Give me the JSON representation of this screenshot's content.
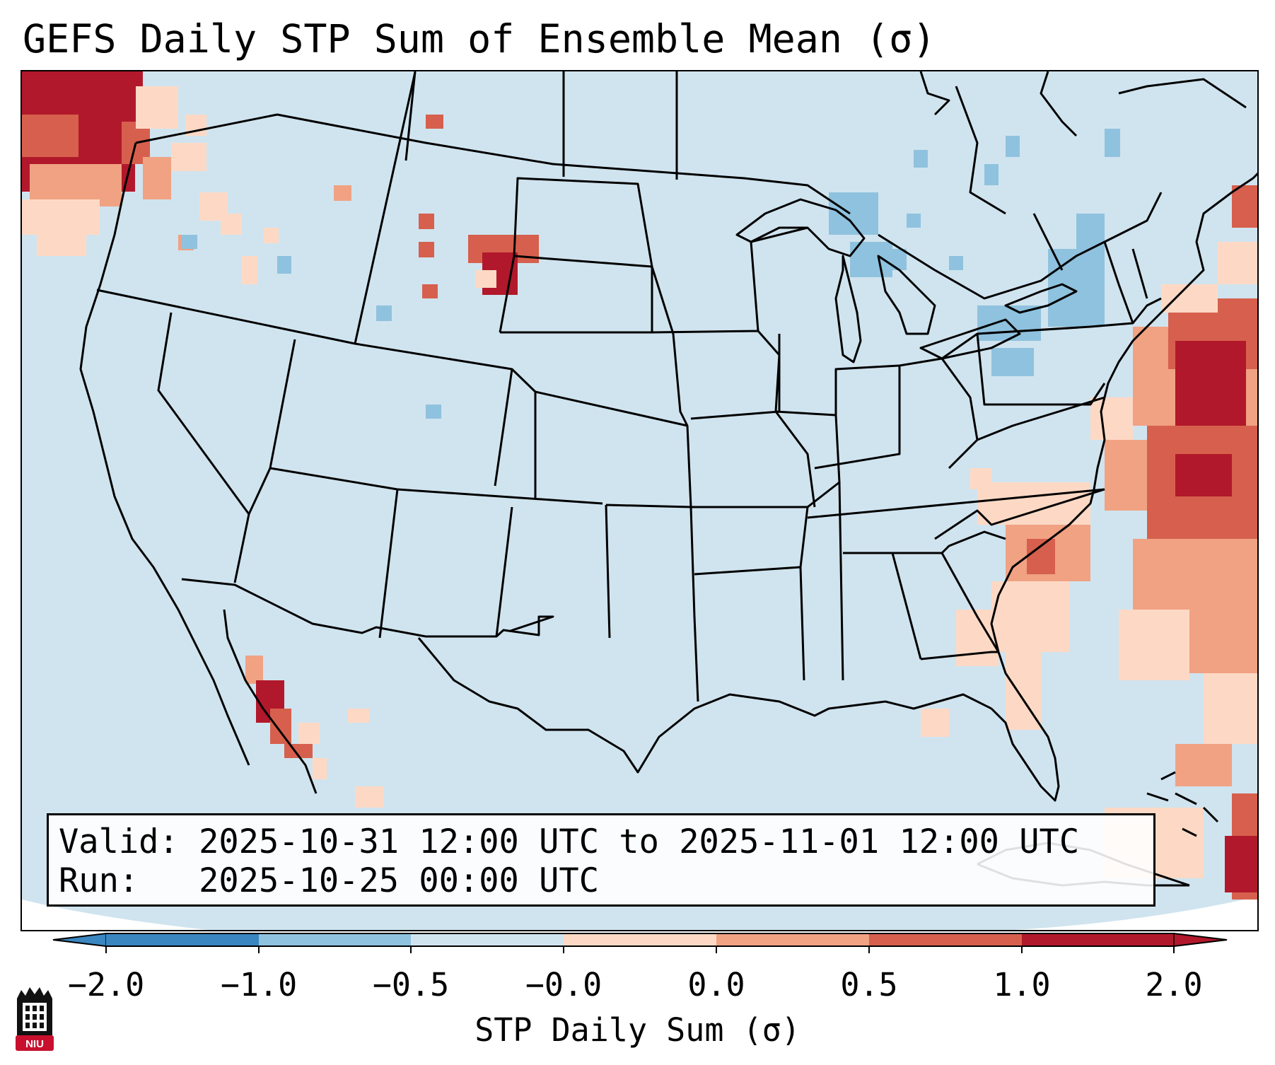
{
  "title": "GEFS Daily STP Sum of Ensemble Mean (σ)",
  "info": {
    "valid_line": "Valid: 2025-10-31 12:00 UTC to 2025-11-01 12:00 UTC",
    "run_line": "Run:   2025-10-25 00:00 UTC"
  },
  "colorbar": {
    "label": "STP Daily Sum (σ)",
    "ticks": [
      "−2.0",
      "−1.0",
      "−0.5",
      "−0.0",
      "0.0",
      "0.5",
      "1.0",
      "2.0"
    ],
    "colors": [
      "#3a86c0",
      "#8fc2de",
      "#d0e4ef",
      "#f7f7f7",
      "#fdd9c5",
      "#f0a283",
      "#d6604d",
      "#b2182b"
    ]
  },
  "logo": {
    "text": "NIU"
  },
  "colors": {
    "base_field": "#d0e4ef",
    "light_red": "#fdd9c5",
    "medium_red": "#f0a283",
    "red": "#d6604d",
    "dark_red": "#b2182b",
    "light_blue": "#8fc2de"
  },
  "map_data": {
    "projection": "lambert-conformal CONUS",
    "variable": "STP daily sum anomaly (σ)",
    "highlights": [
      {
        "region": "Pacific Northwest coast",
        "category": "2.0"
      },
      {
        "region": "Eastern Montana",
        "category": "2.0"
      },
      {
        "region": "Gulf of California",
        "category": "2.0"
      },
      {
        "region": "Western Atlantic / Mid-Atlantic coast",
        "category": "1.0-2.0"
      },
      {
        "region": "Carolinas",
        "category": "0.0-1.0"
      },
      {
        "region": "Great Lakes / Northeast",
        "category": "-1.0"
      }
    ]
  }
}
